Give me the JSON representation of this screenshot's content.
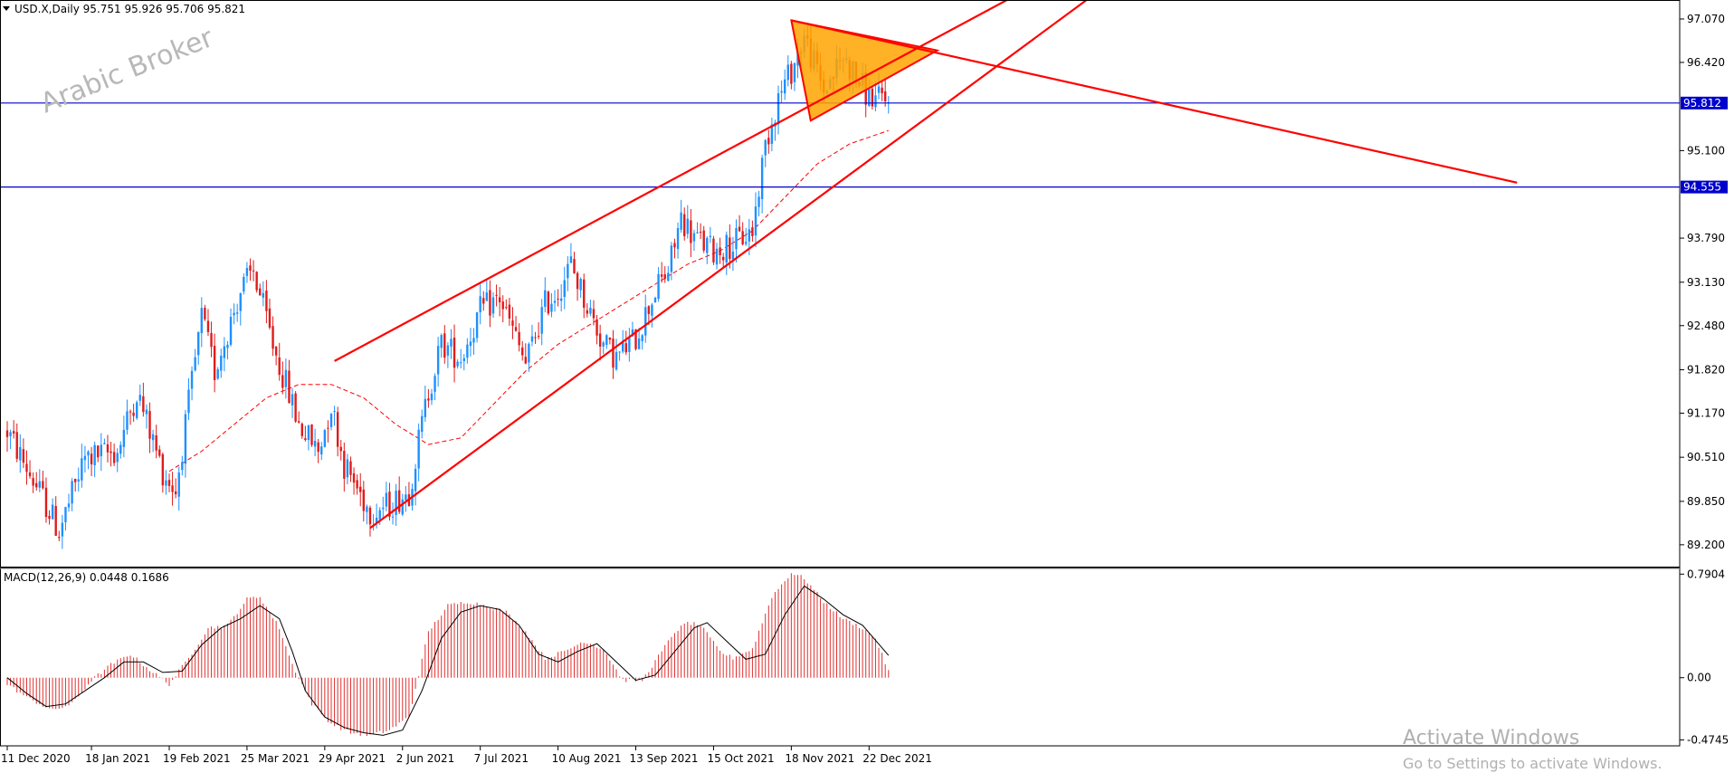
{
  "header": {
    "main_title": "USD.X,Daily  95.751 95.926 95.706 95.821",
    "macd_title": "MACD(12,26,9) 0.0448 0.1686"
  },
  "watermark": "Arabic Broker",
  "activation": {
    "line1": "Activate Windows",
    "line2": "Go to Settings to activate Windows."
  },
  "colors": {
    "bull": "#1e90ff",
    "bear": "#e01b1b",
    "trendline": "#ff0000",
    "hline": "#0000cc",
    "pennant_fill": "#ffa500",
    "macd_hist": "#e03030",
    "macd_signal": "#000000",
    "ma": "#ff0000"
  },
  "chart_data": [
    {
      "type": "candlestick",
      "symbol": "USD.X",
      "timeframe": "Daily",
      "last_bar": {
        "open": 95.751,
        "high": 95.926,
        "low": 95.706,
        "close": 95.821
      },
      "ylim": [
        88.9,
        97.3
      ],
      "y_ticks": [
        "97.070",
        "96.420",
        "95.100",
        "93.790",
        "93.130",
        "92.480",
        "91.820",
        "91.170",
        "90.510",
        "89.850",
        "89.200"
      ],
      "y_tick_values": [
        97.07,
        96.42,
        95.1,
        93.79,
        93.13,
        92.48,
        91.82,
        91.17,
        90.51,
        89.85,
        89.2
      ],
      "x_ticks": [
        "11 Dec 2020",
        "18 Jan 2021",
        "19 Feb 2021",
        "25 Mar 2021",
        "29 Apr 2021",
        "2 Jun 2021",
        "7 Jul 2021",
        "10 Aug 2021",
        "13 Sep 2021",
        "15 Oct 2021",
        "18 Nov 2021",
        "22 Dec 2021"
      ],
      "x_tick_index": [
        0,
        26,
        50,
        74,
        98,
        122,
        146,
        170,
        194,
        218,
        242,
        266
      ],
      "bar_count": 273,
      "price_path": [
        [
          0,
          90.9
        ],
        [
          12,
          89.8
        ],
        [
          16,
          89.4
        ],
        [
          24,
          90.5
        ],
        [
          34,
          90.6
        ],
        [
          40,
          91.5
        ],
        [
          48,
          90.3
        ],
        [
          52,
          90.0
        ],
        [
          60,
          92.6
        ],
        [
          64,
          91.8
        ],
        [
          72,
          93.0
        ],
        [
          76,
          93.3
        ],
        [
          82,
          92.2
        ],
        [
          90,
          91.0
        ],
        [
          96,
          90.6
        ],
        [
          100,
          91.3
        ],
        [
          104,
          90.4
        ],
        [
          112,
          89.7
        ],
        [
          118,
          89.8
        ],
        [
          124,
          90.0
        ],
        [
          130,
          91.5
        ],
        [
          134,
          92.2
        ],
        [
          140,
          92.0
        ],
        [
          146,
          92.7
        ],
        [
          152,
          92.9
        ],
        [
          156,
          92.4
        ],
        [
          160,
          91.9
        ],
        [
          166,
          92.8
        ],
        [
          170,
          93.0
        ],
        [
          174,
          93.4
        ],
        [
          178,
          92.9
        ],
        [
          184,
          92.2
        ],
        [
          188,
          92.0
        ],
        [
          194,
          92.3
        ],
        [
          200,
          93.0
        ],
        [
          204,
          93.3
        ],
        [
          208,
          94.1
        ],
        [
          212,
          93.8
        ],
        [
          218,
          93.6
        ],
        [
          224,
          93.7
        ],
        [
          230,
          93.9
        ],
        [
          234,
          95.2
        ],
        [
          238,
          95.9
        ],
        [
          242,
          96.3
        ],
        [
          246,
          96.8
        ],
        [
          252,
          96.0
        ],
        [
          258,
          96.5
        ],
        [
          262,
          96.2
        ],
        [
          266,
          95.9
        ],
        [
          272,
          95.82
        ]
      ],
      "moving_average": [
        [
          50,
          90.3
        ],
        [
          60,
          90.6
        ],
        [
          70,
          91.0
        ],
        [
          80,
          91.4
        ],
        [
          90,
          91.6
        ],
        [
          100,
          91.6
        ],
        [
          110,
          91.4
        ],
        [
          120,
          91.0
        ],
        [
          130,
          90.7
        ],
        [
          140,
          90.8
        ],
        [
          150,
          91.3
        ],
        [
          160,
          91.8
        ],
        [
          170,
          92.2
        ],
        [
          180,
          92.5
        ],
        [
          190,
          92.8
        ],
        [
          200,
          93.1
        ],
        [
          210,
          93.4
        ],
        [
          220,
          93.6
        ],
        [
          230,
          93.9
        ],
        [
          240,
          94.4
        ],
        [
          250,
          94.9
        ],
        [
          260,
          95.2
        ],
        [
          272,
          95.4
        ]
      ],
      "horizontal_levels": [
        {
          "value": 95.812,
          "label": "95.812"
        },
        {
          "value": 94.555,
          "label": "94.555"
        }
      ],
      "trendlines": [
        {
          "from": [
            101,
            91.95
          ],
          "to": [
            318,
            97.6
          ]
        },
        {
          "from": [
            112,
            89.45
          ],
          "to": [
            340,
            97.6
          ]
        },
        {
          "from": [
            242,
            97.05
          ],
          "to": [
            466,
            94.62
          ]
        }
      ],
      "pennant": {
        "points": [
          [
            242,
            97.05
          ],
          [
            287,
            96.6
          ],
          [
            248,
            95.55
          ]
        ]
      }
    },
    {
      "type": "macd",
      "params": "12,26,9",
      "main": 0.0448,
      "signal": 0.1686,
      "ylim": [
        -0.52,
        0.82
      ],
      "y_ticks": [
        "0.7904",
        "0.00",
        "-0.4745"
      ],
      "y_tick_values": [
        0.7904,
        0.0,
        -0.4745
      ],
      "histogram_path": [
        [
          0,
          -0.05
        ],
        [
          6,
          -0.15
        ],
        [
          14,
          -0.25
        ],
        [
          20,
          -0.2
        ],
        [
          26,
          -0.02
        ],
        [
          32,
          0.1
        ],
        [
          38,
          0.18
        ],
        [
          44,
          0.06
        ],
        [
          50,
          -0.05
        ],
        [
          56,
          0.15
        ],
        [
          62,
          0.38
        ],
        [
          68,
          0.4
        ],
        [
          74,
          0.6
        ],
        [
          78,
          0.62
        ],
        [
          84,
          0.38
        ],
        [
          88,
          0.1
        ],
        [
          94,
          -0.2
        ],
        [
          100,
          -0.35
        ],
        [
          106,
          -0.42
        ],
        [
          112,
          -0.44
        ],
        [
          118,
          -0.4
        ],
        [
          124,
          -0.3
        ],
        [
          130,
          0.35
        ],
        [
          136,
          0.55
        ],
        [
          142,
          0.58
        ],
        [
          148,
          0.55
        ],
        [
          154,
          0.5
        ],
        [
          160,
          0.35
        ],
        [
          166,
          0.15
        ],
        [
          172,
          0.2
        ],
        [
          178,
          0.28
        ],
        [
          184,
          0.22
        ],
        [
          190,
          -0.02
        ],
        [
          196,
          -0.02
        ],
        [
          202,
          0.2
        ],
        [
          206,
          0.35
        ],
        [
          210,
          0.42
        ],
        [
          214,
          0.4
        ],
        [
          220,
          0.2
        ],
        [
          224,
          0.15
        ],
        [
          230,
          0.22
        ],
        [
          236,
          0.62
        ],
        [
          242,
          0.8
        ],
        [
          246,
          0.76
        ],
        [
          252,
          0.58
        ],
        [
          258,
          0.45
        ],
        [
          264,
          0.38
        ],
        [
          268,
          0.3
        ],
        [
          272,
          0.05
        ]
      ],
      "signal_path": [
        [
          0,
          0.0
        ],
        [
          6,
          -0.12
        ],
        [
          12,
          -0.22
        ],
        [
          18,
          -0.2
        ],
        [
          24,
          -0.1
        ],
        [
          30,
          0.0
        ],
        [
          36,
          0.12
        ],
        [
          42,
          0.12
        ],
        [
          48,
          0.04
        ],
        [
          54,
          0.05
        ],
        [
          60,
          0.25
        ],
        [
          66,
          0.38
        ],
        [
          72,
          0.45
        ],
        [
          78,
          0.55
        ],
        [
          84,
          0.45
        ],
        [
          88,
          0.2
        ],
        [
          92,
          -0.1
        ],
        [
          98,
          -0.3
        ],
        [
          104,
          -0.38
        ],
        [
          110,
          -0.42
        ],
        [
          116,
          -0.44
        ],
        [
          122,
          -0.4
        ],
        [
          128,
          -0.1
        ],
        [
          134,
          0.3
        ],
        [
          140,
          0.5
        ],
        [
          146,
          0.55
        ],
        [
          152,
          0.52
        ],
        [
          158,
          0.4
        ],
        [
          164,
          0.18
        ],
        [
          170,
          0.12
        ],
        [
          176,
          0.2
        ],
        [
          182,
          0.26
        ],
        [
          188,
          0.12
        ],
        [
          194,
          -0.02
        ],
        [
          200,
          0.02
        ],
        [
          206,
          0.2
        ],
        [
          212,
          0.38
        ],
        [
          216,
          0.42
        ],
        [
          222,
          0.28
        ],
        [
          228,
          0.14
        ],
        [
          234,
          0.18
        ],
        [
          240,
          0.48
        ],
        [
          246,
          0.7
        ],
        [
          252,
          0.6
        ],
        [
          258,
          0.48
        ],
        [
          264,
          0.4
        ],
        [
          272,
          0.17
        ]
      ]
    }
  ]
}
